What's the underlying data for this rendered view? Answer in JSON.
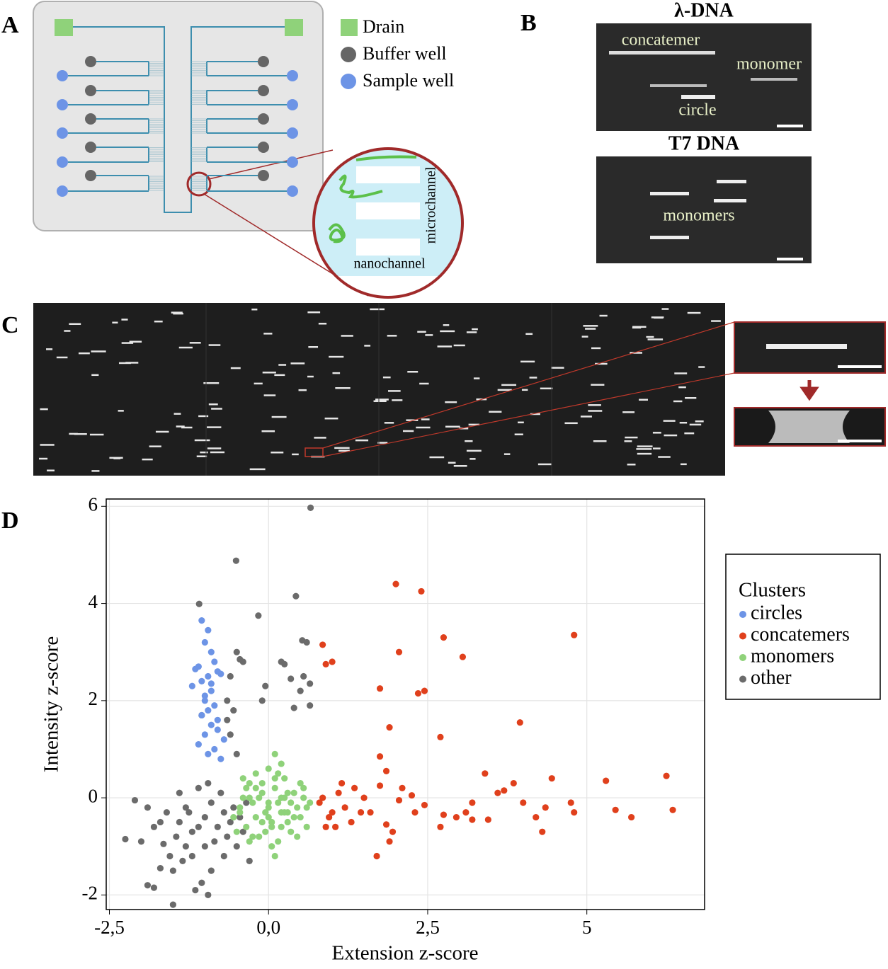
{
  "labels": {
    "A": "A",
    "B": "B",
    "C": "C",
    "D": "D"
  },
  "panel_a": {
    "legend": [
      "Drain",
      "Buffer well",
      "Sample well"
    ],
    "zoom_labels": [
      "microchannel",
      "nanochannel"
    ]
  },
  "panel_b": {
    "top": {
      "title": "λ-DNA",
      "labels": [
        "concatemer",
        "monomer",
        "circle"
      ]
    },
    "bottom": {
      "title": "T7 DNA",
      "labels": [
        "monomers"
      ]
    }
  },
  "chart_data": {
    "type": "scatter",
    "x_label": "Extension z-score",
    "y_label": "Intensity z-score",
    "legend_title": "Clusters",
    "legend": "right",
    "grid": true,
    "xlim": [
      -2.55,
      6.85
    ],
    "ylim": [
      -2.3,
      6.15
    ],
    "xticks": [
      {
        "value": -2.5,
        "label": "-2,5"
      },
      {
        "value": 0,
        "label": "0,0"
      },
      {
        "value": 2.5,
        "label": "2,5"
      },
      5
    ],
    "yticks": [
      -2,
      0,
      2,
      4,
      6
    ],
    "series": [
      {
        "name": "circles",
        "color": "#6d94e6",
        "x": [
          -1.05,
          -0.95,
          -1.0,
          -0.9,
          -0.85,
          -1.1,
          -0.8,
          -0.95,
          -1.05,
          -0.75,
          -0.9,
          -1.0,
          -1.2,
          -0.85,
          -0.95,
          -1.05,
          -0.8,
          -0.9,
          -1.0,
          -0.7,
          -1.1,
          -0.85,
          -0.95,
          -0.75,
          -1.0,
          -0.9,
          -1.15,
          -0.8
        ],
        "values": [
          3.65,
          3.45,
          3.2,
          3.0,
          2.8,
          2.7,
          2.6,
          2.5,
          2.4,
          2.55,
          2.2,
          2.1,
          2.3,
          1.9,
          1.8,
          1.7,
          1.6,
          1.5,
          1.3,
          1.2,
          1.1,
          1.0,
          0.9,
          0.8,
          2.0,
          2.35,
          2.65,
          1.4
        ]
      },
      {
        "name": "concatemers",
        "color": "#e0401c",
        "x": [
          0.85,
          1.0,
          0.9,
          2.0,
          2.4,
          2.75,
          3.05,
          2.05,
          4.8,
          1.75,
          2.35,
          2.45,
          1.9,
          2.7,
          3.95,
          1.75,
          1.85,
          6.25,
          5.3,
          4.45,
          3.4,
          3.85,
          3.7,
          3.6,
          4.0,
          4.35,
          4.75,
          4.8,
          5.45,
          5.7,
          6.35,
          4.3,
          4.2,
          3.1,
          3.2,
          2.95,
          2.75,
          2.7,
          3.45,
          3.2,
          2.45,
          2.1,
          2.3,
          1.95,
          1.85,
          1.9,
          1.7,
          1.6,
          1.5,
          1.35,
          1.2,
          1.1,
          1.0,
          0.9,
          0.85,
          0.95,
          1.3,
          1.45,
          1.75,
          2.05,
          2.25,
          1.05,
          0.8,
          1.15
        ],
        "values": [
          3.15,
          2.8,
          2.75,
          4.4,
          4.25,
          3.3,
          2.9,
          3.0,
          3.35,
          2.25,
          2.15,
          2.2,
          1.45,
          1.25,
          1.55,
          0.85,
          0.55,
          0.45,
          0.35,
          0.4,
          0.5,
          0.3,
          0.15,
          0.1,
          -0.1,
          -0.2,
          -0.1,
          -0.3,
          -0.25,
          -0.4,
          -0.25,
          -0.7,
          -0.4,
          -0.3,
          -0.45,
          -0.4,
          -0.35,
          -0.6,
          -0.45,
          -0.1,
          -0.15,
          0.2,
          -0.3,
          -0.7,
          -0.55,
          -0.9,
          -1.2,
          -0.3,
          0.0,
          0.2,
          -0.2,
          0.1,
          -0.3,
          -0.6,
          0.0,
          -0.4,
          -0.5,
          -0.3,
          0.25,
          -0.05,
          0.05,
          -0.6,
          -0.1,
          0.3
        ]
      },
      {
        "name": "monomers",
        "color": "#8fd27a",
        "x": [
          -0.55,
          -0.45,
          -0.4,
          -0.35,
          -0.3,
          -0.25,
          -0.2,
          -0.15,
          -0.1,
          -0.05,
          0.0,
          0.05,
          0.1,
          0.15,
          0.2,
          0.25,
          0.3,
          0.35,
          0.4,
          0.45,
          0.5,
          0.55,
          0.6,
          -0.5,
          -0.3,
          -0.2,
          -0.1,
          0.0,
          0.1,
          0.2,
          0.3,
          0.4,
          0.5,
          0.6,
          -0.4,
          -0.25,
          -0.15,
          0.05,
          0.15,
          0.25,
          0.35,
          -0.35,
          -0.05,
          0.1,
          0.2,
          0.3,
          -0.2,
          0.0,
          0.15,
          0.45,
          -0.1,
          0.05,
          0.25,
          0.55,
          0.0,
          -0.3,
          0.2,
          0.65,
          0.1,
          -0.45
        ],
        "values": [
          -0.4,
          -0.2,
          0.0,
          -0.6,
          0.3,
          -0.1,
          0.5,
          -0.8,
          0.1,
          -0.3,
          0.6,
          -0.5,
          0.2,
          -0.9,
          0.0,
          0.4,
          -0.3,
          -0.7,
          0.1,
          -0.2,
          -0.4,
          0.0,
          -0.6,
          -0.7,
          -0.9,
          0.2,
          -0.5,
          -0.1,
          0.4,
          -0.6,
          0.1,
          -0.4,
          0.3,
          -0.2,
          0.4,
          -0.8,
          0.0,
          -1.0,
          0.5,
          -0.3,
          -0.1,
          0.2,
          -0.7,
          -1.2,
          0.7,
          -0.5,
          -0.4,
          -0.2,
          -0.1,
          -0.8,
          0.3,
          -0.6,
          0.0,
          0.2,
          -0.4,
          0.0,
          -0.3,
          -0.1,
          0.9,
          -0.3
        ]
      },
      {
        "name": "other",
        "color": "#6b6b6b",
        "x": [
          0.66,
          -0.51,
          -1.09,
          0.43,
          0.53,
          0.6,
          -0.16,
          -0.5,
          -0.45,
          -0.4,
          0.2,
          0.25,
          0.55,
          0.65,
          0.5,
          0.35,
          -0.05,
          0.65,
          0.4,
          -0.1,
          -0.6,
          -0.65,
          -0.55,
          -0.65,
          -0.6,
          -0.5,
          -1.05,
          -2.25,
          -2.1,
          -1.9,
          -1.8,
          -1.5,
          -1.7,
          -1.65,
          -1.55,
          -1.4,
          -1.3,
          -1.2,
          -1.1,
          -1.0,
          -0.9,
          -0.8,
          -0.7,
          -0.6,
          -1.0,
          -1.15,
          -1.05,
          -0.9,
          -0.7,
          -0.85,
          -1.3,
          -1.45,
          -1.6,
          -1.8,
          -2.0,
          -1.25,
          -0.95,
          -0.75,
          -0.55,
          -1.1,
          -1.5,
          -0.95,
          -1.35,
          -0.65,
          -1.7,
          -1.2,
          -0.45,
          -0.35,
          -0.4,
          -0.5,
          -0.3,
          -1.9,
          -1.4
        ],
        "values": [
          5.97,
          4.88,
          3.99,
          4.15,
          3.24,
          3.2,
          3.75,
          3.0,
          2.85,
          2.8,
          2.8,
          2.75,
          2.5,
          2.35,
          2.2,
          2.45,
          2.3,
          1.9,
          1.85,
          2.0,
          2.5,
          2.0,
          1.8,
          1.6,
          1.3,
          0.9,
          1.7,
          -0.85,
          -0.05,
          -1.8,
          -1.85,
          -2.2,
          -1.45,
          -0.95,
          -1.2,
          -0.5,
          -0.2,
          -0.7,
          0.2,
          -0.4,
          -0.1,
          -0.6,
          -0.3,
          -0.5,
          -1.0,
          -1.9,
          -1.75,
          -1.5,
          -1.2,
          -0.9,
          -1.0,
          -0.8,
          -0.3,
          -0.6,
          -0.9,
          -0.3,
          0.3,
          0.1,
          -0.2,
          -0.6,
          -1.5,
          -2.0,
          -1.3,
          -0.8,
          -0.5,
          -1.2,
          -0.4,
          -0.1,
          -0.7,
          -1.0,
          -1.3,
          -0.2,
          0.1
        ]
      }
    ]
  }
}
